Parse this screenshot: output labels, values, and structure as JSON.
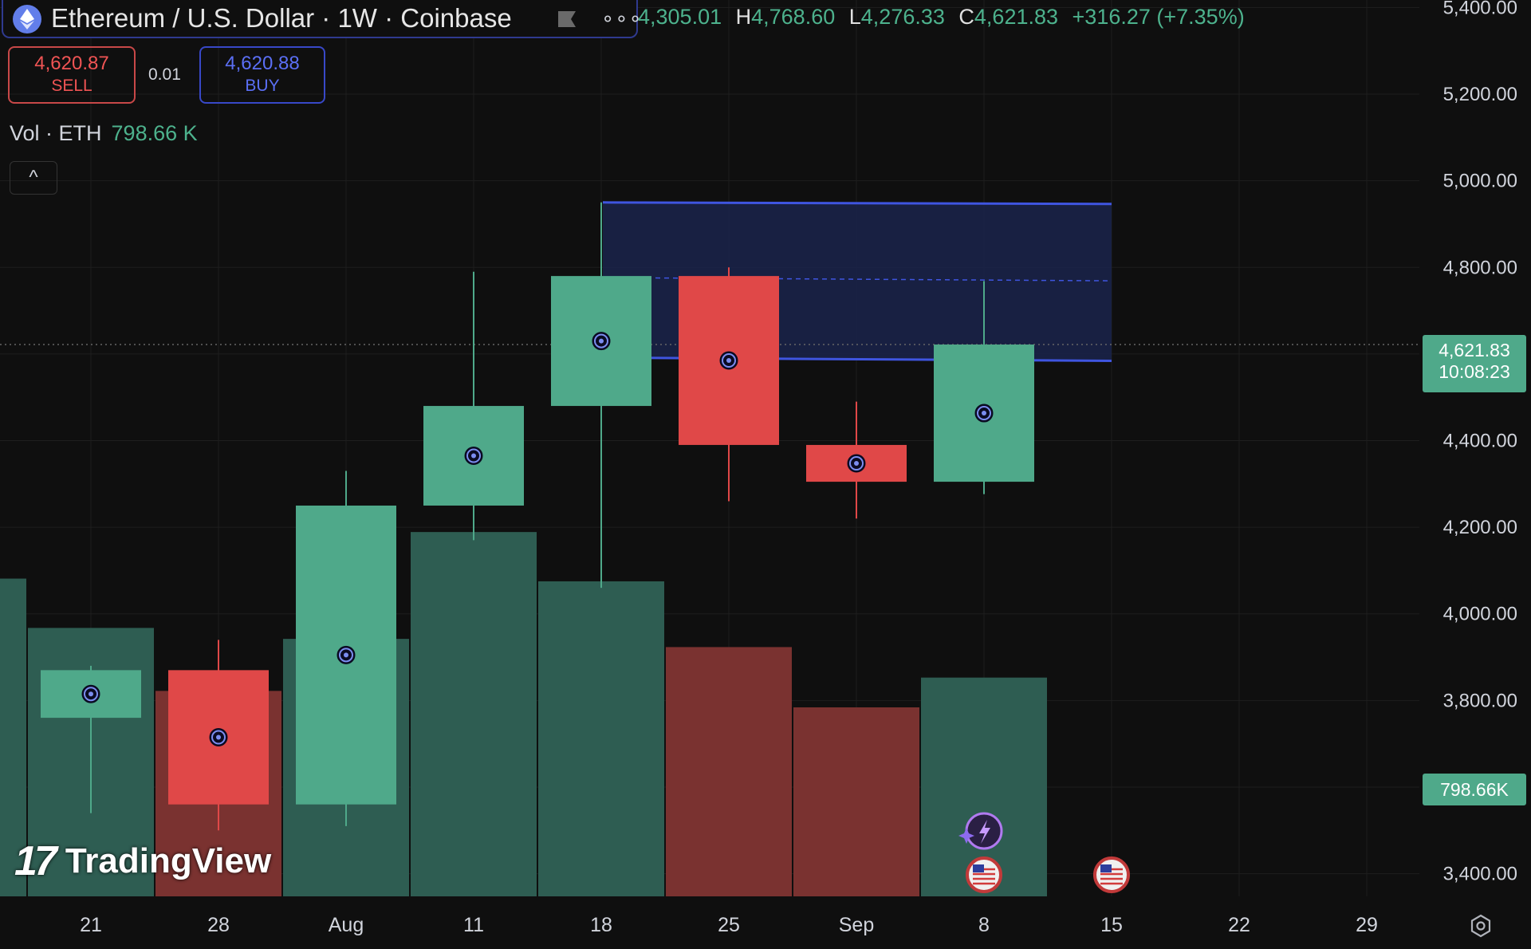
{
  "header": {
    "symbol": "Ethereum / U.S. Dollar · 1W · Coinbase",
    "more_label": "∘∘∘",
    "ohlc": {
      "o_label": "",
      "o_value": "4,305.01",
      "h_label": "H",
      "h_value": "4,768.60",
      "l_label": "L",
      "l_value": "4,276.33",
      "c_label": "C",
      "c_value": "4,621.83",
      "change": "+316.27 (+7.35%)"
    }
  },
  "trade": {
    "sell_price": "4,620.87",
    "sell_label": "SELL",
    "spread": "0.01",
    "buy_price": "4,620.88",
    "buy_label": "BUY"
  },
  "volume_legend": {
    "label": "Vol · ETH",
    "value": "798.66 K"
  },
  "collapse_label": "^",
  "price_tag": {
    "price": "4,621.83",
    "countdown": "10:08:23"
  },
  "volume_tag": "798.66K",
  "brand": {
    "logo_mark": "17",
    "name": "TradingView"
  },
  "colors": {
    "up": "#4fa98a",
    "down": "#e04848",
    "vol_up": "#2e5d52",
    "vol_down": "#7a3230",
    "zone": "#1a2248",
    "zone_line": "#3f55e0",
    "background": "#0f0f0f"
  },
  "chart_data": {
    "type": "candlestick",
    "title": "Ethereum / U.S. Dollar · 1W · Coinbase",
    "ylim": [
      3300,
      5400
    ],
    "y_ticks": [
      "5,400.00",
      "5,200.00",
      "5,000.00",
      "4,800.00",
      "4,400.00",
      "4,200.00",
      "4,000.00",
      "3,800.00",
      "3,400.00"
    ],
    "y_tick_values": [
      5400,
      5200,
      5000,
      4800,
      4400,
      4200,
      4000,
      3800,
      3400
    ],
    "x_ticks": [
      "21",
      "28",
      "Aug",
      "11",
      "18",
      "25",
      "Sep",
      "8",
      "15",
      "22",
      "29"
    ],
    "candles": [
      {
        "week": "21",
        "open": 3760,
        "high": 3880,
        "low": 3540,
        "close": 3870
      },
      {
        "week": "28",
        "open": 3870,
        "high": 3940,
        "low": 3500,
        "close": 3560
      },
      {
        "week": "Aug",
        "open": 3560,
        "high": 4330,
        "low": 3510,
        "close": 4250
      },
      {
        "week": "11",
        "open": 4250,
        "high": 4790,
        "low": 4170,
        "close": 4480
      },
      {
        "week": "18",
        "open": 4480,
        "high": 4950,
        "low": 4060,
        "close": 4780
      },
      {
        "week": "25",
        "open": 4780,
        "high": 4800,
        "low": 4260,
        "close": 4390
      },
      {
        "week": "Sep",
        "open": 4390,
        "high": 4490,
        "low": 4220,
        "close": 4305
      },
      {
        "week": "8",
        "open": 4305.01,
        "high": 4768.6,
        "low": 4276.33,
        "close": 4621.83
      }
    ],
    "volume": {
      "unit": "K ETH",
      "bars": [
        {
          "week": "prev",
          "value": 1160,
          "direction": "up"
        },
        {
          "week": "21",
          "value": 980,
          "direction": "up"
        },
        {
          "week": "28",
          "value": 750,
          "direction": "down"
        },
        {
          "week": "Aug",
          "value": 940,
          "direction": "up"
        },
        {
          "week": "11",
          "value": 1330,
          "direction": "up"
        },
        {
          "week": "18",
          "value": 1150,
          "direction": "up"
        },
        {
          "week": "25",
          "value": 910,
          "direction": "down"
        },
        {
          "week": "Sep",
          "value": 690,
          "direction": "down"
        },
        {
          "week": "8",
          "value": 798.66,
          "direction": "up"
        }
      ],
      "max": 2300
    },
    "zone": {
      "top": 4950,
      "bottom": 4610,
      "mid": 4780,
      "from_week": "18",
      "to_week": "15"
    },
    "current_price": 4621.83,
    "event_markers": [
      {
        "week": "8",
        "type": "ai-event"
      },
      {
        "week": "8",
        "type": "us-flag"
      },
      {
        "week": "15",
        "type": "us-flag"
      }
    ]
  }
}
